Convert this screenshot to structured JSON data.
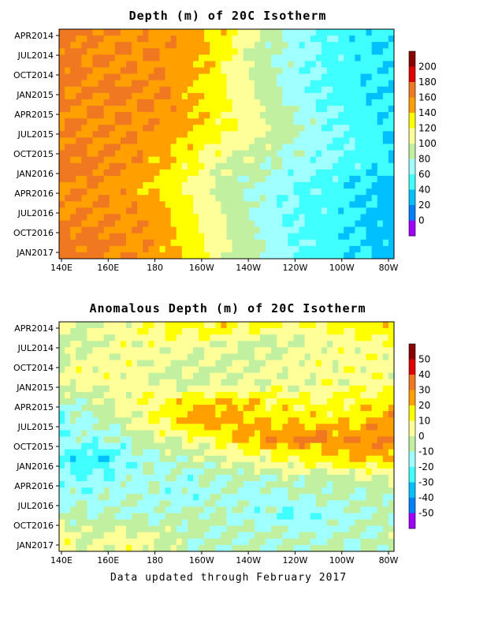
{
  "chart_data": [
    {
      "type": "heatmap",
      "title": "Depth (m) of 20C Isotherm",
      "x_ticks": [
        "140E",
        "160E",
        "180",
        "160W",
        "140W",
        "120W",
        "100W",
        "80W"
      ],
      "y_ticks": [
        "APR2014",
        "JUL2014",
        "OCT2014",
        "JAN2015",
        "APR2015",
        "JUL2015",
        "OCT2015",
        "JAN2016",
        "APR2016",
        "JUL2016",
        "OCT2016",
        "JAN2017"
      ],
      "colorbar": {
        "levels": [
          "200",
          "180",
          "160",
          "140",
          "120",
          "100",
          "80",
          "60",
          "40",
          "20",
          "0"
        ],
        "colors": [
          "#8b0000",
          "#e00000",
          "#f07820",
          "#ffa000",
          "#ffff00",
          "#ffff99",
          "#c0f0a0",
          "#a0ffff",
          "#40ffff",
          "#00c0ff",
          "#0080ff",
          "#a000ff"
        ]
      },
      "rows": [
        {
          "y": "APR2014",
          "profile": [
            165,
            165,
            155,
            150,
            150,
            130,
            100,
            70,
            55,
            45,
            40
          ]
        },
        {
          "y": "JUL2014",
          "profile": [
            165,
            160,
            160,
            160,
            150,
            125,
            90,
            70,
            55,
            45,
            40
          ]
        },
        {
          "y": "OCT2014",
          "profile": [
            170,
            160,
            160,
            155,
            145,
            120,
            90,
            70,
            55,
            50,
            40
          ]
        },
        {
          "y": "JAN2015",
          "profile": [
            165,
            160,
            165,
            160,
            140,
            120,
            95,
            70,
            55,
            45,
            35
          ]
        },
        {
          "y": "APR2015",
          "profile": [
            160,
            160,
            160,
            160,
            145,
            120,
            100,
            80,
            60,
            50,
            40
          ]
        },
        {
          "y": "JUL2015",
          "profile": [
            160,
            160,
            160,
            155,
            140,
            125,
            105,
            85,
            65,
            50,
            40
          ]
        },
        {
          "y": "OCT2015",
          "profile": [
            165,
            160,
            160,
            150,
            130,
            115,
            95,
            80,
            65,
            55,
            40
          ]
        },
        {
          "y": "JAN2016",
          "profile": [
            170,
            165,
            160,
            140,
            120,
            95,
            85,
            70,
            60,
            50,
            40
          ]
        },
        {
          "y": "APR2016",
          "profile": [
            160,
            160,
            150,
            135,
            110,
            90,
            75,
            60,
            50,
            40,
            30
          ]
        },
        {
          "y": "JUL2016",
          "profile": [
            160,
            160,
            155,
            145,
            120,
            95,
            75,
            60,
            50,
            40,
            30
          ]
        },
        {
          "y": "OCT2016",
          "profile": [
            165,
            160,
            160,
            150,
            125,
            100,
            75,
            60,
            50,
            40,
            30
          ]
        },
        {
          "y": "JAN2017",
          "profile": [
            165,
            165,
            160,
            150,
            130,
            100,
            80,
            60,
            50,
            40,
            30
          ]
        }
      ]
    },
    {
      "type": "heatmap",
      "title": "Anomalous Depth (m) of 20C Isotherm",
      "x_ticks": [
        "140E",
        "160E",
        "180",
        "160W",
        "140W",
        "120W",
        "100W",
        "80W"
      ],
      "y_ticks": [
        "APR2014",
        "JUL2014",
        "OCT2014",
        "JAN2015",
        "APR2015",
        "JUL2015",
        "OCT2015",
        "JAN2016",
        "APR2016",
        "JUL2016",
        "OCT2016",
        "JAN2017"
      ],
      "colorbar": {
        "levels": [
          "50",
          "40",
          "30",
          "20",
          "10",
          "0",
          "-10",
          "-20",
          "-30",
          "-40",
          "-50"
        ],
        "colors": [
          "#8b0000",
          "#e00000",
          "#f07820",
          "#ffa000",
          "#ffff00",
          "#ffff99",
          "#c0f0a0",
          "#a0ffff",
          "#40ffff",
          "#00c0ff",
          "#0080ff",
          "#a000ff"
        ]
      },
      "rows": [
        {
          "y": "APR2014",
          "profile": [
            0,
            0,
            5,
            10,
            15,
            15,
            10,
            10,
            10,
            15,
            15
          ]
        },
        {
          "y": "JUL2014",
          "profile": [
            -5,
            0,
            5,
            5,
            5,
            0,
            -5,
            0,
            5,
            5,
            10
          ]
        },
        {
          "y": "OCT2014",
          "profile": [
            0,
            5,
            5,
            0,
            0,
            0,
            0,
            5,
            5,
            5,
            5
          ]
        },
        {
          "y": "JAN2015",
          "profile": [
            5,
            5,
            5,
            0,
            -5,
            0,
            0,
            0,
            5,
            5,
            5
          ]
        },
        {
          "y": "APR2015",
          "profile": [
            -10,
            -5,
            5,
            10,
            20,
            20,
            15,
            10,
            10,
            15,
            15
          ]
        },
        {
          "y": "JUL2015",
          "profile": [
            -20,
            -10,
            0,
            10,
            25,
            25,
            20,
            20,
            15,
            20,
            30
          ]
        },
        {
          "y": "OCT2015",
          "profile": [
            -15,
            -15,
            -10,
            0,
            5,
            15,
            25,
            30,
            30,
            30,
            30
          ]
        },
        {
          "y": "JAN2016",
          "profile": [
            -25,
            -30,
            -20,
            -10,
            -5,
            0,
            5,
            10,
            15,
            20,
            20
          ]
        },
        {
          "y": "APR2016",
          "profile": [
            -15,
            -20,
            -15,
            -10,
            -15,
            -10,
            -10,
            -5,
            -5,
            0,
            0
          ]
        },
        {
          "y": "JUL2016",
          "profile": [
            -15,
            -15,
            -10,
            -15,
            -15,
            -10,
            -15,
            -10,
            -10,
            -10,
            -5
          ]
        },
        {
          "y": "OCT2016",
          "profile": [
            -5,
            -10,
            -10,
            -10,
            -5,
            -10,
            -15,
            -20,
            -15,
            -10,
            -10
          ]
        },
        {
          "y": "JAN2017",
          "profile": [
            5,
            0,
            5,
            0,
            -10,
            -10,
            -10,
            -10,
            -10,
            -10,
            -5
          ]
        }
      ]
    }
  ],
  "footer": "Data updated through February 2017"
}
